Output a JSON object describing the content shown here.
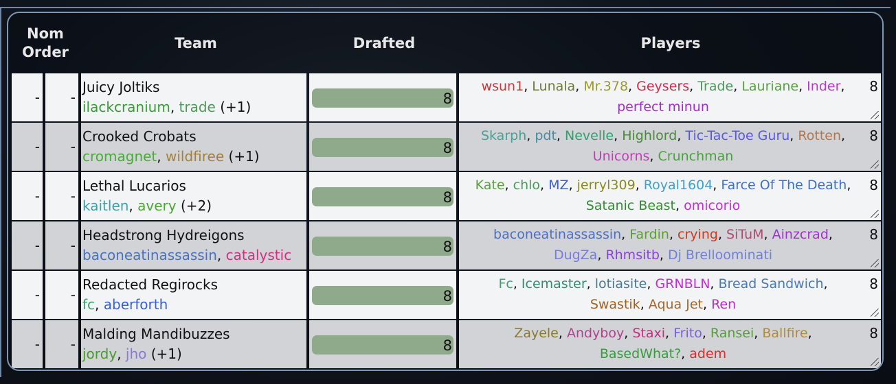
{
  "header": {
    "nom_order": "Nom Order",
    "team": "Team",
    "drafted": "Drafted",
    "players": "Players"
  },
  "colors": {
    "bar_fill": "#8faa8a",
    "row_light": "#f3f4f6",
    "row_dark": "#d2d3d6",
    "panel_border": "#7d97b5"
  },
  "rows": [
    {
      "order1": "-",
      "order2": "-",
      "team": "Juicy Joltiks",
      "members": [
        {
          "name": "ilackcranium",
          "color": "#3a9a3a"
        },
        {
          "name": "trade",
          "color": "#4a9a5a"
        }
      ],
      "extra": "(+1)",
      "drafted": 8,
      "drafted_label": "8",
      "count": "8",
      "players": [
        {
          "name": "wsun1",
          "color": "#c8383c"
        },
        {
          "name": "Lunala",
          "color": "#6b7a3a"
        },
        {
          "name": "Mr.378",
          "color": "#9a9a30"
        },
        {
          "name": "Geysers",
          "color": "#c8304a"
        },
        {
          "name": "Trade",
          "color": "#4a9a5a"
        },
        {
          "name": "Lauriane",
          "color": "#5aa040"
        },
        {
          "name": "Inder",
          "color": "#b040c0"
        },
        {
          "name": "perfect minun",
          "color": "#a030c0"
        }
      ]
    },
    {
      "order1": "-",
      "order2": "-",
      "team": "Crooked Crobats",
      "members": [
        {
          "name": "cromagnet",
          "color": "#4aaa3a"
        },
        {
          "name": "wildfiree",
          "color": "#a08040"
        }
      ],
      "extra": "(+1)",
      "drafted": 8,
      "drafted_label": "8",
      "count": "8",
      "players": [
        {
          "name": "Skarph",
          "color": "#4aa098"
        },
        {
          "name": "pdt",
          "color": "#4a8aa0"
        },
        {
          "name": "Nevelle",
          "color": "#3a9a70"
        },
        {
          "name": "Highlord",
          "color": "#4a8a3a"
        },
        {
          "name": "Tic-Tac-Toe Guru",
          "color": "#5858e0"
        },
        {
          "name": "Rotten",
          "color": "#b07850"
        },
        {
          "name": "Unicorns",
          "color": "#c040b0"
        },
        {
          "name": "Crunchman",
          "color": "#4aa040"
        }
      ]
    },
    {
      "order1": "-",
      "order2": "-",
      "team": "Lethal Lucarios",
      "members": [
        {
          "name": "kaitlen",
          "color": "#40a0a8"
        },
        {
          "name": "avery",
          "color": "#4aa830"
        }
      ],
      "extra": "(+2)",
      "drafted": 8,
      "drafted_label": "8",
      "count": "8",
      "players": [
        {
          "name": "Kate",
          "color": "#5aa040"
        },
        {
          "name": "chlo",
          "color": "#4a9a5a"
        },
        {
          "name": "MZ",
          "color": "#3a60d0"
        },
        {
          "name": "jerryl309",
          "color": "#8a8a20"
        },
        {
          "name": "Royal1604",
          "color": "#40a0c8"
        },
        {
          "name": "Farce Of The Death",
          "color": "#3a70d0"
        },
        {
          "name": "Satanic Beast",
          "color": "#3a8a3a"
        },
        {
          "name": "omicorio",
          "color": "#c030d0"
        }
      ]
    },
    {
      "order1": "-",
      "order2": "-",
      "team": "Headstrong Hydreigons",
      "members": [
        {
          "name": "baconeatinassassin",
          "color": "#4a70c0"
        },
        {
          "name": "catalystic",
          "color": "#d03080"
        }
      ],
      "extra": "",
      "drafted": 8,
      "drafted_label": "8",
      "count": "8",
      "players": [
        {
          "name": "baconeatinassassin",
          "color": "#4a70c0"
        },
        {
          "name": "Fardin",
          "color": "#5aa030"
        },
        {
          "name": "crying",
          "color": "#c83a20"
        },
        {
          "name": "SiTuM",
          "color": "#b04a70"
        },
        {
          "name": "Ainzcrad",
          "color": "#a030d0"
        },
        {
          "name": "DugZa",
          "color": "#7a7ae0"
        },
        {
          "name": "Rhmsitb",
          "color": "#8a40e0"
        },
        {
          "name": "Dj Brelloominati",
          "color": "#7080d8"
        }
      ]
    },
    {
      "order1": "-",
      "order2": "-",
      "team": "Redacted Regirocks",
      "members": [
        {
          "name": "fc",
          "color": "#40a070"
        },
        {
          "name": "aberforth",
          "color": "#3a60d0"
        }
      ],
      "extra": "",
      "drafted": 8,
      "drafted_label": "8",
      "count": "8",
      "players": [
        {
          "name": "Fc",
          "color": "#40a070"
        },
        {
          "name": "Icemaster",
          "color": "#3a8a70"
        },
        {
          "name": "lotiasite",
          "color": "#4a7a90"
        },
        {
          "name": "GRNBLN",
          "color": "#c030d0"
        },
        {
          "name": "Bread Sandwich",
          "color": "#4a7ab0"
        },
        {
          "name": "Swastik",
          "color": "#a06020"
        },
        {
          "name": "Aqua Jet",
          "color": "#a06830"
        },
        {
          "name": "Ren",
          "color": "#b030c0"
        }
      ]
    },
    {
      "order1": "-",
      "order2": "-",
      "team": "Malding Mandibuzzes",
      "members": [
        {
          "name": "jordy",
          "color": "#4a9a30"
        },
        {
          "name": "jho",
          "color": "#8a7ad0"
        }
      ],
      "extra": "(+1)",
      "drafted": 8,
      "drafted_label": "8",
      "count": "8",
      "players": [
        {
          "name": "Zayele",
          "color": "#8a7a30"
        },
        {
          "name": "Andyboy",
          "color": "#b04090"
        },
        {
          "name": "Staxi",
          "color": "#c03080"
        },
        {
          "name": "Frito",
          "color": "#7a60e0"
        },
        {
          "name": "Ransei",
          "color": "#5a9a40"
        },
        {
          "name": "Ballfire",
          "color": "#b08a40"
        },
        {
          "name": "BasedWhat?",
          "color": "#3a9a40"
        },
        {
          "name": "adem",
          "color": "#d03030"
        }
      ]
    }
  ]
}
